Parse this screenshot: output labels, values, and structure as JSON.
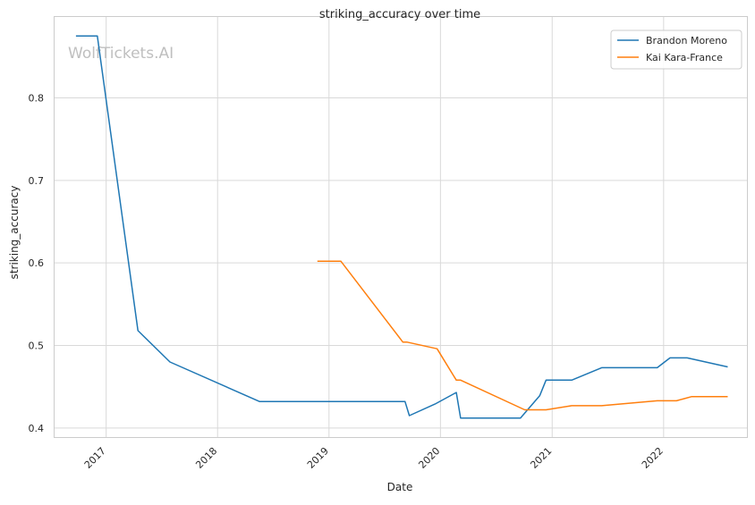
{
  "chart_data": {
    "type": "line",
    "title": "striking_accuracy over time",
    "xlabel": "Date",
    "ylabel": "striking_accuracy",
    "watermark": "WolfTickets.AI",
    "x_type": "date",
    "xlim": [
      "2016-07-16",
      "2022-10-01"
    ],
    "ylim": [
      0.389,
      0.898
    ],
    "x_ticks": [
      {
        "label": "2017",
        "date": "2017-01-01"
      },
      {
        "label": "2018",
        "date": "2018-01-01"
      },
      {
        "label": "2019",
        "date": "2019-01-01"
      },
      {
        "label": "2020",
        "date": "2020-01-01"
      },
      {
        "label": "2021",
        "date": "2021-01-01"
      },
      {
        "label": "2022",
        "date": "2022-01-01"
      }
    ],
    "y_ticks": [
      {
        "label": "0.4",
        "value": 0.4
      },
      {
        "label": "0.5",
        "value": 0.5
      },
      {
        "label": "0.6",
        "value": 0.6
      },
      {
        "label": "0.7",
        "value": 0.7
      },
      {
        "label": "0.8",
        "value": 0.8
      }
    ],
    "grid": true,
    "legend_position": "top-right",
    "series": [
      {
        "name": "Brandon Moreno",
        "color": "#1f77b4",
        "points": [
          [
            "2016-09-24",
            0.875
          ],
          [
            "2016-12-03",
            0.875
          ],
          [
            "2017-04-15",
            0.518
          ],
          [
            "2017-07-29",
            0.48
          ],
          [
            "2018-05-19",
            0.432
          ],
          [
            "2019-09-07",
            0.432
          ],
          [
            "2019-09-21",
            0.415
          ],
          [
            "2019-12-14",
            0.429
          ],
          [
            "2020-02-22",
            0.443
          ],
          [
            "2020-03-07",
            0.412
          ],
          [
            "2020-09-19",
            0.412
          ],
          [
            "2020-11-21",
            0.439
          ],
          [
            "2020-12-12",
            0.458
          ],
          [
            "2021-03-06",
            0.458
          ],
          [
            "2021-06-12",
            0.473
          ],
          [
            "2021-12-11",
            0.473
          ],
          [
            "2022-01-22",
            0.485
          ],
          [
            "2022-03-19",
            0.485
          ],
          [
            "2022-07-30",
            0.474
          ]
        ]
      },
      {
        "name": "Kai Kara-France",
        "color": "#ff7f0e",
        "points": [
          [
            "2018-11-24",
            0.602
          ],
          [
            "2019-02-09",
            0.602
          ],
          [
            "2019-08-31",
            0.504
          ],
          [
            "2019-09-14",
            0.504
          ],
          [
            "2019-12-21",
            0.496
          ],
          [
            "2020-02-22",
            0.458
          ],
          [
            "2020-03-07",
            0.458
          ],
          [
            "2020-10-03",
            0.422
          ],
          [
            "2020-12-12",
            0.422
          ],
          [
            "2021-03-06",
            0.427
          ],
          [
            "2021-06-12",
            0.427
          ],
          [
            "2021-12-11",
            0.433
          ],
          [
            "2022-02-12",
            0.433
          ],
          [
            "2022-04-02",
            0.438
          ],
          [
            "2022-07-30",
            0.438
          ]
        ]
      }
    ]
  }
}
